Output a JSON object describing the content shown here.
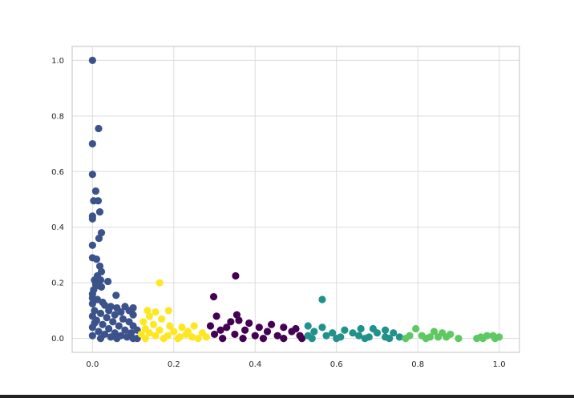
{
  "chart_data": {
    "type": "scatter",
    "title": "",
    "xlabel": "",
    "ylabel": "",
    "xlim": [
      -0.05,
      1.05
    ],
    "ylim": [
      -0.05,
      1.05
    ],
    "grid": true,
    "legend": "none",
    "x_ticks": [
      "0.0",
      "0.2",
      "0.4",
      "0.6",
      "0.8",
      "1.0"
    ],
    "y_ticks": [
      "0.0",
      "0.2",
      "0.4",
      "0.6",
      "0.8",
      "1.0"
    ],
    "x_tick_values": [
      0,
      0.2,
      0.4,
      0.6,
      0.8,
      1.0
    ],
    "y_tick_values": [
      0,
      0.2,
      0.4,
      0.6,
      0.8,
      1.0
    ],
    "series": [
      {
        "color": "#3b528b",
        "points": [
          [
            0.0,
            1.0
          ],
          [
            0.015,
            0.755
          ],
          [
            0.0,
            0.7
          ],
          [
            0.0,
            0.59
          ],
          [
            0.008,
            0.53
          ],
          [
            0.003,
            0.495
          ],
          [
            0.014,
            0.495
          ],
          [
            0.018,
            0.455
          ],
          [
            0.0,
            0.44
          ],
          [
            0.0,
            0.43
          ],
          [
            0.022,
            0.38
          ],
          [
            0.016,
            0.36
          ],
          [
            0.0,
            0.335
          ],
          [
            0.0,
            0.29
          ],
          [
            0.01,
            0.285
          ],
          [
            0.018,
            0.26
          ],
          [
            0.022,
            0.24
          ],
          [
            0.012,
            0.225
          ],
          [
            0.005,
            0.21
          ],
          [
            0.02,
            0.21
          ],
          [
            0.038,
            0.205
          ],
          [
            0.008,
            0.195
          ],
          [
            0.015,
            0.19
          ],
          [
            0.022,
            0.185
          ],
          [
            0.003,
            0.175
          ],
          [
            0.0,
            0.16
          ],
          [
            0.058,
            0.155
          ],
          [
            0.0,
            0.145
          ],
          [
            0.012,
            0.14
          ],
          [
            0.025,
            0.13
          ],
          [
            0.0,
            0.125
          ],
          [
            0.03,
            0.12
          ],
          [
            0.045,
            0.115
          ],
          [
            0.06,
            0.11
          ],
          [
            0.08,
            0.115
          ],
          [
            0.1,
            0.11
          ],
          [
            0.005,
            0.1
          ],
          [
            0.04,
            0.1
          ],
          [
            0.07,
            0.095
          ],
          [
            0.09,
            0.1
          ],
          [
            0.02,
            0.09
          ],
          [
            0.055,
            0.085
          ],
          [
            0.1,
            0.085
          ],
          [
            0.0,
            0.08
          ],
          [
            0.035,
            0.075
          ],
          [
            0.075,
            0.07
          ],
          [
            0.01,
            0.065
          ],
          [
            0.05,
            0.06
          ],
          [
            0.09,
            0.06
          ],
          [
            0.025,
            0.05
          ],
          [
            0.065,
            0.045
          ],
          [
            0.1,
            0.045
          ],
          [
            0.0,
            0.04
          ],
          [
            0.04,
            0.035
          ],
          [
            0.08,
            0.03
          ],
          [
            0.015,
            0.025
          ],
          [
            0.055,
            0.02
          ],
          [
            0.095,
            0.02
          ],
          [
            0.03,
            0.015
          ],
          [
            0.07,
            0.01
          ],
          [
            0.0,
            0.01
          ],
          [
            0.045,
            0.005
          ],
          [
            0.085,
            0.005
          ],
          [
            0.02,
            0.0
          ],
          [
            0.06,
            0.0
          ],
          [
            0.1,
            0.0
          ],
          [
            0.11,
            0.0
          ],
          [
            0.005,
            0.055
          ],
          [
            0.11,
            0.03
          ]
        ]
      },
      {
        "color": "#fde725",
        "points": [
          [
            0.165,
            0.2
          ],
          [
            0.187,
            0.1
          ],
          [
            0.135,
            0.1
          ],
          [
            0.155,
            0.095
          ],
          [
            0.14,
            0.08
          ],
          [
            0.17,
            0.07
          ],
          [
            0.125,
            0.06
          ],
          [
            0.15,
            0.05
          ],
          [
            0.19,
            0.045
          ],
          [
            0.22,
            0.04
          ],
          [
            0.25,
            0.045
          ],
          [
            0.13,
            0.035
          ],
          [
            0.165,
            0.03
          ],
          [
            0.2,
            0.025
          ],
          [
            0.235,
            0.025
          ],
          [
            0.27,
            0.02
          ],
          [
            0.12,
            0.015
          ],
          [
            0.155,
            0.01
          ],
          [
            0.185,
            0.01
          ],
          [
            0.215,
            0.005
          ],
          [
            0.245,
            0.005
          ],
          [
            0.28,
            0.005
          ],
          [
            0.13,
            0.0
          ],
          [
            0.175,
            0.0
          ],
          [
            0.21,
            0.0
          ],
          [
            0.26,
            0.0
          ],
          [
            0.14,
            0.02
          ],
          [
            0.23,
            0.015
          ]
        ]
      },
      {
        "color": "#440154",
        "points": [
          [
            0.352,
            0.225
          ],
          [
            0.298,
            0.15
          ],
          [
            0.355,
            0.085
          ],
          [
            0.305,
            0.08
          ],
          [
            0.36,
            0.065
          ],
          [
            0.34,
            0.06
          ],
          [
            0.385,
            0.055
          ],
          [
            0.44,
            0.05
          ],
          [
            0.29,
            0.045
          ],
          [
            0.33,
            0.04
          ],
          [
            0.41,
            0.04
          ],
          [
            0.47,
            0.04
          ],
          [
            0.5,
            0.035
          ],
          [
            0.315,
            0.03
          ],
          [
            0.375,
            0.03
          ],
          [
            0.43,
            0.025
          ],
          [
            0.49,
            0.025
          ],
          [
            0.3,
            0.015
          ],
          [
            0.35,
            0.015
          ],
          [
            0.4,
            0.01
          ],
          [
            0.455,
            0.01
          ],
          [
            0.51,
            0.01
          ],
          [
            0.32,
            0.0
          ],
          [
            0.37,
            0.0
          ],
          [
            0.42,
            0.0
          ],
          [
            0.47,
            0.0
          ],
          [
            0.515,
            0.0
          ]
        ]
      },
      {
        "color": "#21918c",
        "points": [
          [
            0.565,
            0.14
          ],
          [
            0.53,
            0.045
          ],
          [
            0.565,
            0.04
          ],
          [
            0.62,
            0.03
          ],
          [
            0.66,
            0.035
          ],
          [
            0.69,
            0.035
          ],
          [
            0.72,
            0.03
          ],
          [
            0.545,
            0.025
          ],
          [
            0.59,
            0.02
          ],
          [
            0.64,
            0.02
          ],
          [
            0.7,
            0.02
          ],
          [
            0.74,
            0.02
          ],
          [
            0.53,
            0.01
          ],
          [
            0.575,
            0.01
          ],
          [
            0.61,
            0.005
          ],
          [
            0.655,
            0.01
          ],
          [
            0.68,
            0.005
          ],
          [
            0.72,
            0.005
          ],
          [
            0.755,
            0.005
          ],
          [
            0.54,
            0.0
          ],
          [
            0.6,
            0.0
          ],
          [
            0.67,
            0.0
          ],
          [
            0.73,
            0.0
          ]
        ]
      },
      {
        "color": "#5ec962",
        "points": [
          [
            0.795,
            0.035
          ],
          [
            0.84,
            0.025
          ],
          [
            0.86,
            0.02
          ],
          [
            0.88,
            0.015
          ],
          [
            0.78,
            0.01
          ],
          [
            0.81,
            0.01
          ],
          [
            0.83,
            0.005
          ],
          [
            0.85,
            0.005
          ],
          [
            0.87,
            0.005
          ],
          [
            0.9,
            0.0
          ],
          [
            0.77,
            0.0
          ],
          [
            0.82,
            0.0
          ],
          [
            0.955,
            0.005
          ],
          [
            0.97,
            0.01
          ],
          [
            0.985,
            0.01
          ],
          [
            1.0,
            0.005
          ],
          [
            0.96,
            0.0
          ],
          [
            0.99,
            0.0
          ],
          [
            0.945,
            0.0
          ]
        ]
      }
    ]
  }
}
